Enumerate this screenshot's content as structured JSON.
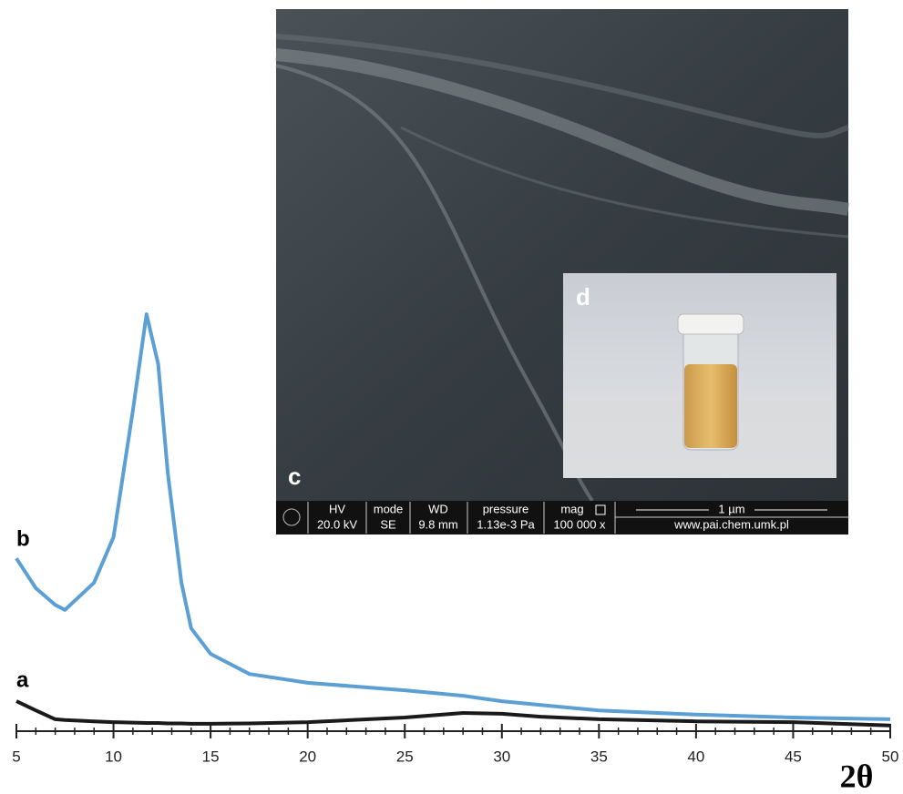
{
  "chart_data": {
    "type": "line",
    "x_label": "2θ",
    "x": [
      5,
      6,
      7,
      7.5,
      9,
      10,
      11,
      11.7,
      12.3,
      12.8,
      13.5,
      14,
      15,
      17,
      20,
      25,
      28,
      30,
      32,
      35,
      40,
      45,
      50
    ],
    "series": [
      {
        "name": "a",
        "color": "#1a1a1a",
        "values": [
          6.5,
          4.3,
          2.2,
          2.0,
          1.7,
          1.5,
          1.4,
          1.3,
          1.3,
          1.2,
          1.2,
          1.1,
          1.1,
          1.2,
          1.5,
          2.6,
          3.7,
          3.5,
          2.8,
          2.2,
          1.7,
          1.5,
          0.7
        ]
      },
      {
        "name": "b",
        "color": "#5b9fd4",
        "values": [
          40.6,
          33.5,
          29.5,
          28.3,
          34.8,
          45.7,
          76,
          98.9,
          87,
          60.9,
          34.8,
          23.9,
          17.8,
          13,
          10.9,
          9.1,
          7.8,
          6.5,
          5.6,
          4.3,
          3.3,
          2.6,
          2.2
        ]
      }
    ],
    "xlim": [
      5,
      50
    ],
    "xticks": [
      5,
      10,
      15,
      20,
      25,
      30,
      35,
      40,
      45,
      50
    ],
    "xminorticks": [
      6,
      7,
      8,
      9,
      11,
      12,
      13,
      14,
      16,
      17,
      18,
      19,
      21,
      22,
      23,
      24,
      26,
      27,
      28,
      29,
      31,
      32,
      33,
      34,
      36,
      37,
      38,
      39,
      41,
      42,
      43,
      44,
      46,
      47,
      48,
      49
    ],
    "ylim": [
      0,
      100
    ]
  },
  "sem_inset": {
    "label": "c",
    "photo_label": "d",
    "info": {
      "hv_label": "HV",
      "hv": "20.0 kV",
      "mode_label": "mode",
      "mode": "SE",
      "wd_label": "WD",
      "wd": "9.8 mm",
      "pressure_label": "pressure",
      "pressure": "1.13e-3 Pa",
      "mag_label": "mag",
      "mag": "100 000 x",
      "scale": "1 µm",
      "url": "www.pai.chem.umk.pl"
    }
  }
}
